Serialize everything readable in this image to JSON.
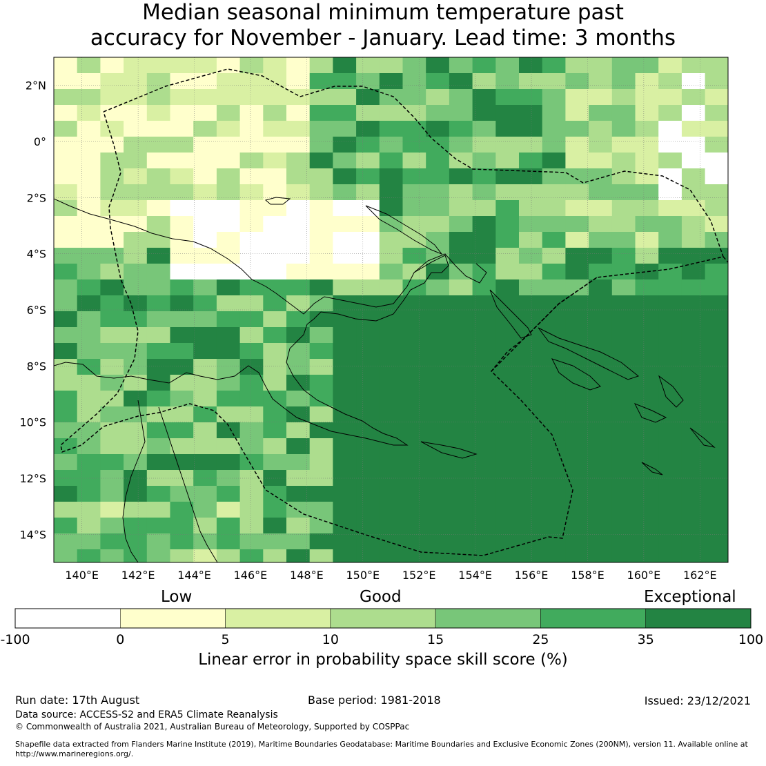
{
  "title": {
    "line1": "Median seasonal minimum temperature past",
    "line2": "accuracy for November - January. Lead time: 3 months"
  },
  "map": {
    "lon_range": [
      139,
      163
    ],
    "lat_range": [
      -15,
      3
    ],
    "lon_ticks": [
      "140°E",
      "142°E",
      "144°E",
      "146°E",
      "148°E",
      "150°E",
      "152°E",
      "154°E",
      "156°E",
      "158°E",
      "160°E",
      "162°E"
    ],
    "lat_ticks": [
      "2°N",
      "0°",
      "2°S",
      "4°S",
      "6°S",
      "8°S",
      "10°S",
      "12°S",
      "14°S"
    ],
    "grid": true,
    "eez_boundary": "dashed",
    "coastline_color": "#000000"
  },
  "colorbar": {
    "category_labels": [
      "Low",
      "Good",
      "Exceptional"
    ],
    "bounds": [
      "-100",
      "0",
      "5",
      "10",
      "15",
      "25",
      "35",
      "100"
    ],
    "colors": [
      "#ffffff",
      "#ffffcc",
      "#d9f0a3",
      "#addd8e",
      "#78c679",
      "#41ab5d",
      "#238443"
    ],
    "label": "Linear error in probability space skill score (%)"
  },
  "footer": {
    "run_date": "Run date: 17th August",
    "base_period": "Base period: 1981-2018",
    "issued": "Issued: 23/12/2021",
    "data_source": "Data source: ACCESS-S2 and ERA5 Climate Reanalysis",
    "copyright": "© Commonwealth of Australia 2021, Australian Bureau of Meteorology, Supported by COSPPac",
    "shapefile": "Shapefile data extracted from Flanders Marine Institute (2019), Maritime Boundaries Geodatabase: Maritime Boundaries and Exclusive Economic Zones (200NM), version 11. Available online at http://www.marineregions.org/."
  }
}
